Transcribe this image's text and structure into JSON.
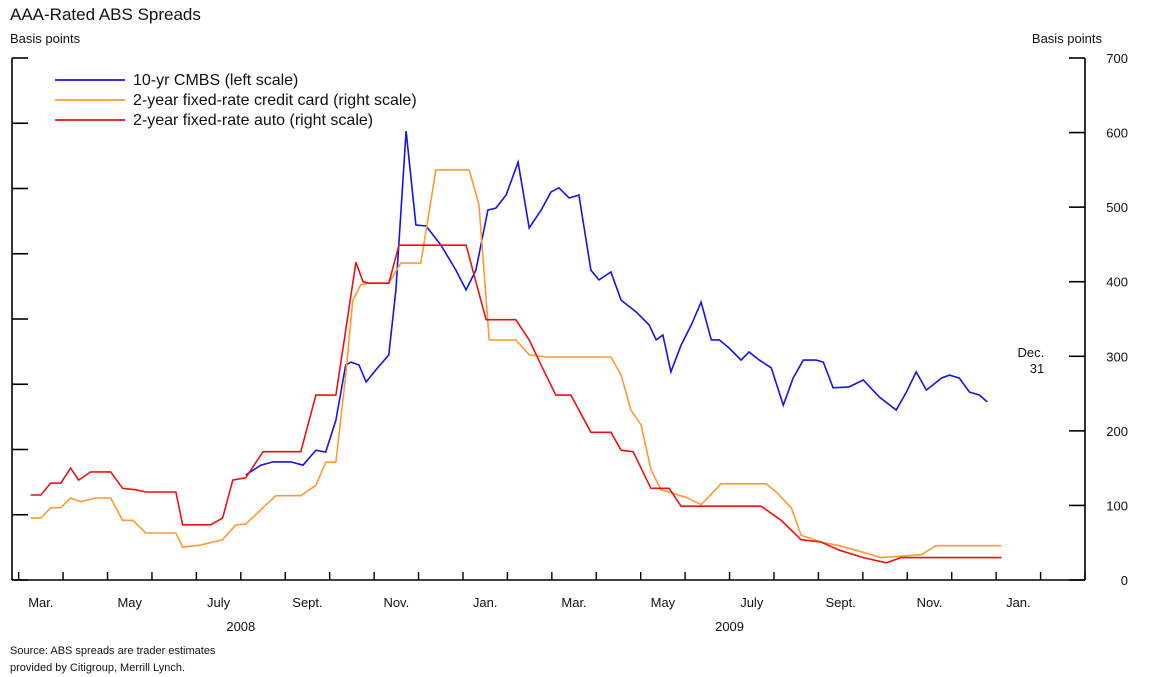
{
  "chart_data": {
    "type": "line",
    "title": "AAA-Rated ABS Spreads",
    "ylabel": "Basis points",
    "y2label": "Basis points",
    "xlim": [
      2.85,
      27.0
    ],
    "xticks": [
      {
        "value": 3.5,
        "label": "Mar."
      },
      {
        "value": 5.5,
        "label": "May"
      },
      {
        "value": 7.5,
        "label": "July"
      },
      {
        "value": 9.5,
        "label": "Sept."
      },
      {
        "value": 11.5,
        "label": "Nov."
      },
      {
        "value": 13.5,
        "label": "Jan."
      },
      {
        "value": 15.5,
        "label": "Mar."
      },
      {
        "value": 17.5,
        "label": "May"
      },
      {
        "value": 19.5,
        "label": "July"
      },
      {
        "value": 21.5,
        "label": "Sept."
      },
      {
        "value": 23.5,
        "label": "Nov."
      },
      {
        "value": 25.5,
        "label": "Jan."
      }
    ],
    "xticks_minor": [
      3,
      4,
      5,
      6,
      7,
      8,
      9,
      10,
      11,
      12,
      13,
      14,
      15,
      16,
      17,
      18,
      19,
      20,
      21,
      22,
      23,
      24,
      25,
      26,
      27
    ],
    "years": [
      {
        "value": 8.0,
        "label": "2008"
      },
      {
        "value": 19.0,
        "label": "2009"
      }
    ],
    "ylim": [
      0,
      1600
    ],
    "yticks": [
      0,
      200,
      400,
      600,
      800,
      1000,
      1200,
      1400,
      1600
    ],
    "y2lim": [
      0,
      700
    ],
    "y2ticks": [
      0,
      100,
      200,
      300,
      400,
      500,
      600,
      700
    ],
    "legend": "upper left",
    "series": [
      {
        "name": "10-yr CMBS (left scale)",
        "color": "#1414e6",
        "axis": "y",
        "x": [
          8.11,
          8.45,
          8.72,
          9.13,
          9.4,
          9.69,
          9.91,
          10.14,
          10.36,
          10.48,
          10.66,
          10.82,
          11.04,
          11.33,
          11.49,
          11.72,
          11.94,
          12.17,
          12.5,
          12.84,
          13.07,
          13.29,
          13.56,
          13.74,
          13.97,
          14.24,
          14.49,
          14.76,
          14.98,
          15.16,
          15.39,
          15.61,
          15.88,
          16.06,
          16.33,
          16.56,
          16.9,
          17.19,
          17.35,
          17.5,
          17.68,
          17.91,
          18.14,
          18.36,
          18.59,
          18.77,
          18.99,
          19.26,
          19.44,
          19.67,
          19.94,
          20.21,
          20.43,
          20.66,
          20.95,
          21.11,
          21.33,
          21.69,
          22.01,
          22.37,
          22.75,
          22.98,
          23.2,
          23.43,
          23.77,
          23.95,
          24.17,
          24.4,
          24.62,
          24.8
        ],
        "values": [
          322,
          352,
          362,
          362,
          352,
          398,
          392,
          490,
          659,
          668,
          659,
          607,
          644,
          690,
          889,
          1376,
          1088,
          1085,
          1027,
          950,
          889,
          950,
          1134,
          1140,
          1180,
          1281,
          1079,
          1134,
          1189,
          1202,
          1171,
          1180,
          950,
          920,
          944,
          858,
          821,
          782,
          736,
          751,
          638,
          720,
          782,
          852,
          736,
          736,
          711,
          674,
          699,
          674,
          650,
          536,
          619,
          674,
          674,
          668,
          589,
          592,
          613,
          561,
          521,
          576,
          638,
          582,
          619,
          628,
          619,
          576,
          567,
          546
        ]
      },
      {
        "name": "2-year fixed-rate credit card (right scale)",
        "color": "#ff9a30",
        "axis": "y2",
        "x": [
          3.27,
          3.5,
          3.72,
          3.95,
          4.17,
          4.4,
          4.73,
          5.07,
          5.34,
          5.57,
          5.86,
          6.54,
          6.69,
          7.1,
          7.59,
          7.89,
          8.11,
          8.5,
          8.79,
          9.35,
          9.69,
          9.91,
          10.14,
          10.36,
          10.52,
          10.7,
          10.88,
          11.33,
          11.6,
          12.05,
          12.39,
          13.14,
          13.36,
          13.59,
          14.19,
          14.49,
          14.87,
          16.33,
          16.56,
          16.78,
          17.01,
          17.23,
          17.46,
          18.02,
          18.36,
          18.81,
          19.82,
          20.05,
          20.39,
          20.61,
          21.06,
          21.47,
          21.96,
          22.41,
          23.32,
          23.65,
          25.12
        ],
        "values": [
          83,
          83,
          97,
          97,
          110,
          105,
          110,
          110,
          80,
          80,
          63,
          63,
          44,
          47,
          54,
          74,
          75,
          97,
          113,
          113,
          127,
          158,
          158,
          275,
          375,
          396,
          398,
          398,
          425,
          425,
          550,
          550,
          503,
          322,
          322,
          302,
          299,
          299,
          275,
          228,
          208,
          148,
          121,
          111,
          101,
          129,
          129,
          118,
          97,
          60,
          51,
          46,
          38,
          30,
          34,
          46,
          46
        ]
      },
      {
        "name": "2-year fixed-rate auto (right scale)",
        "color": "#ee1111",
        "axis": "y2",
        "x": [
          3.27,
          3.5,
          3.72,
          3.95,
          4.17,
          4.35,
          4.62,
          5.07,
          5.34,
          5.64,
          5.86,
          6.54,
          6.69,
          7.32,
          7.59,
          7.82,
          8.11,
          8.5,
          9.35,
          9.69,
          10.14,
          10.36,
          10.59,
          10.75,
          10.88,
          11.33,
          11.56,
          13.07,
          13.52,
          14.19,
          14.49,
          14.76,
          15.09,
          15.43,
          15.88,
          16.33,
          16.56,
          16.83,
          17.23,
          17.64,
          17.91,
          19.71,
          20.16,
          20.61,
          21.06,
          21.47,
          22.01,
          22.53,
          22.86,
          23.54,
          25.12
        ],
        "values": [
          114,
          114,
          130,
          130,
          150,
          134,
          145,
          145,
          123,
          121,
          118,
          118,
          74,
          74,
          83,
          134,
          137,
          172,
          172,
          248,
          248,
          335,
          426,
          400,
          398,
          398,
          449,
          449,
          349,
          349,
          322,
          288,
          248,
          248,
          198,
          198,
          174,
          172,
          123,
          123,
          99,
          99,
          80,
          54,
          51,
          40,
          30,
          23,
          30,
          30,
          30
        ]
      }
    ],
    "annotation": {
      "lines": [
        "Dec.",
        "31"
      ],
      "x": 24.8
    },
    "source": [
      "Source: ABS spreads are trader estimates",
      "provided by Citigroup, Merrill Lynch."
    ]
  }
}
